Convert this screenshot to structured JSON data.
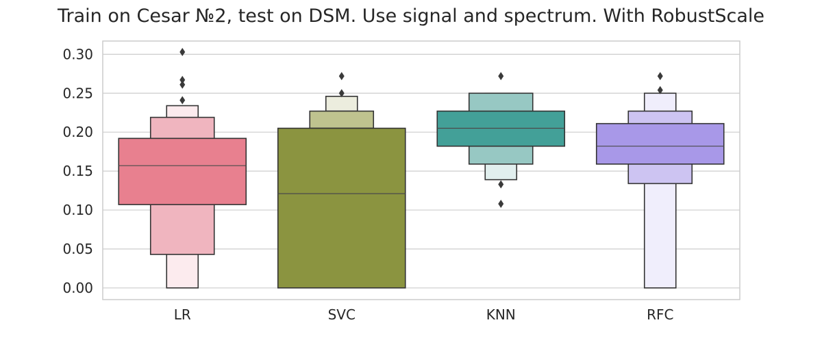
{
  "chart_data": {
    "type": "boxen",
    "title": "Train on Cesar №2, test on DSM. Use signal and spectrum. With RobustScale",
    "xlabel": "",
    "ylabel": "",
    "ylim": [
      -0.015,
      0.317
    ],
    "yticks": [
      0.0,
      0.05,
      0.1,
      0.15,
      0.2,
      0.25,
      0.3
    ],
    "ytick_labels": [
      "0.00",
      "0.05",
      "0.10",
      "0.15",
      "0.20",
      "0.25",
      "0.30"
    ],
    "grid": true,
    "categories": [
      "LR",
      "SVC",
      "KNN",
      "RFC"
    ],
    "series": [
      {
        "category": "LR",
        "color": "#e8808f",
        "median": 0.157,
        "boxes": [
          {
            "low": 0.107,
            "high": 0.192,
            "color": "#e8808f"
          },
          {
            "low": 0.043,
            "high": 0.219,
            "color": "#f0b5bf"
          },
          {
            "low": 0.0,
            "high": 0.234,
            "color": "#fcebee"
          }
        ],
        "outliers": [
          0.241,
          0.261,
          0.267,
          0.303
        ]
      },
      {
        "category": "SVC",
        "color": "#8b9440",
        "median": 0.121,
        "boxes": [
          {
            "low": 0.0,
            "high": 0.205,
            "color": "#8b9440"
          },
          {
            "low": 0.205,
            "high": 0.227,
            "color": "#bfc38f"
          },
          {
            "low": 0.227,
            "high": 0.246,
            "color": "#ecedde"
          }
        ],
        "outliers": [
          0.25,
          0.272
        ]
      },
      {
        "category": "KNN",
        "color": "#43a098",
        "median": 0.205,
        "boxes": [
          {
            "low": 0.182,
            "high": 0.227,
            "color": "#43a098"
          },
          {
            "low": 0.159,
            "high": 0.25,
            "color": "#97c8c3"
          },
          {
            "low": 0.139,
            "high": 0.25,
            "color": "#e1efee"
          }
        ],
        "outliers": [
          0.133,
          0.108,
          0.272
        ]
      },
      {
        "category": "RFC",
        "color": "#a898e8",
        "median": 0.182,
        "boxes": [
          {
            "low": 0.159,
            "high": 0.211,
            "color": "#a898e8"
          },
          {
            "low": 0.134,
            "high": 0.227,
            "color": "#cdc4f2"
          },
          {
            "low": 0.0,
            "high": 0.25,
            "color": "#f0eefc"
          }
        ],
        "outliers": [
          0.254,
          0.272
        ]
      }
    ]
  }
}
